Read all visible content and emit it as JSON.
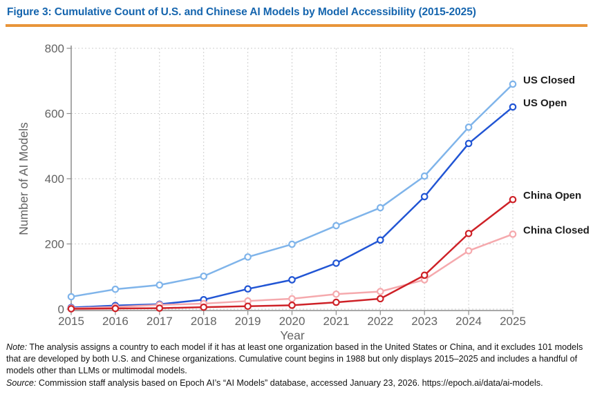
{
  "figure": {
    "title": "Figure 3: Cumulative Count of U.S. and Chinese AI Models by Model Accessibility (2015-2025)",
    "title_color": "#1565AE",
    "divider_color": "#E8953A"
  },
  "chart_data": {
    "type": "line",
    "title": "",
    "xlabel": "Year",
    "ylabel": "Number of AI Models",
    "x": [
      2015,
      2016,
      2017,
      2018,
      2019,
      2020,
      2021,
      2022,
      2023,
      2024,
      2025
    ],
    "xlim": [
      2015,
      2025
    ],
    "ylim": [
      0,
      800
    ],
    "yticks": [
      0,
      200,
      400,
      600,
      800
    ],
    "grid": true,
    "grid_style": "dashed",
    "marker": "open-circle",
    "legend_position": "labels-at-line-ends",
    "series": [
      {
        "name": "US Closed",
        "color": "#7FB4EA",
        "values": [
          38,
          61,
          74,
          101,
          160,
          199,
          256,
          311,
          408,
          558,
          690
        ]
      },
      {
        "name": "US Open",
        "color": "#2155D4",
        "values": [
          5,
          11,
          15,
          29,
          62,
          90,
          141,
          212,
          345,
          508,
          620
        ]
      },
      {
        "name": "China Closed",
        "color": "#F5A9AD",
        "values": [
          3,
          7,
          13,
          17,
          25,
          32,
          46,
          54,
          90,
          179,
          230
        ]
      },
      {
        "name": "China Open",
        "color": "#CE2127",
        "values": [
          1,
          2,
          3,
          6,
          9,
          12,
          21,
          32,
          104,
          232,
          336
        ]
      }
    ],
    "legend_order": [
      "US Closed",
      "US Open",
      "China Open",
      "China Closed"
    ]
  },
  "notes": {
    "note_label": "Note:",
    "note_text": " The analysis assigns a country to each model if it has at least one organization based in the United States or China, and it excludes 101 models that are developed by both U.S. and Chinese organizations. Cumulative count begins in 1988 but only displays 2015–2025 and includes a handful of models other than LLMs or multimodal models.",
    "source_label": "Source:",
    "source_text": " Commission staff analysis based on Epoch AI’s “AI Models” database, accessed January 23, 2026. https://epoch.ai/data/ai-models."
  }
}
